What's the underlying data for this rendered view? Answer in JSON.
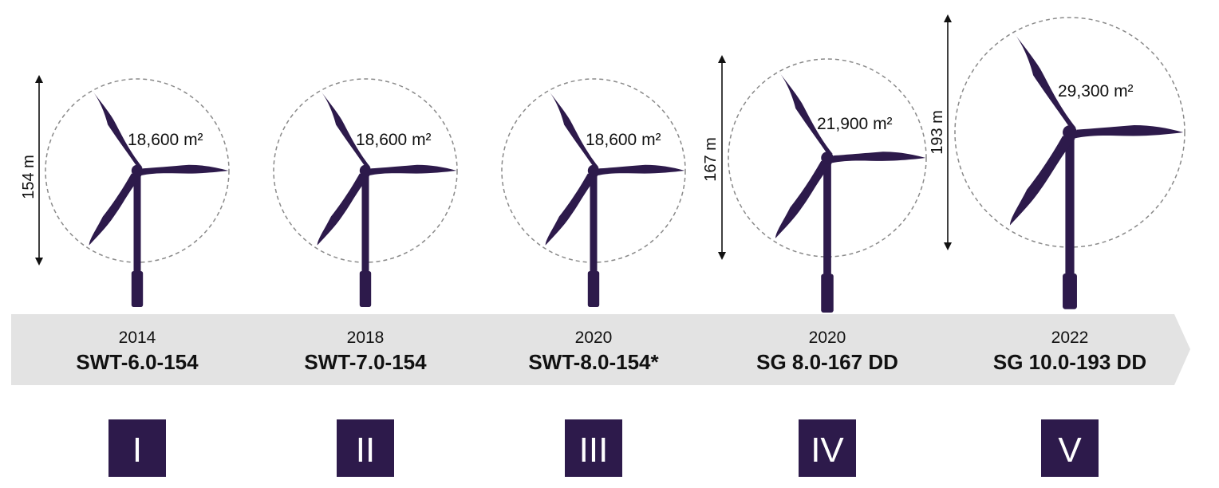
{
  "colors": {
    "turbine": "#2d1a4b",
    "band": "#e3e3e3",
    "circle": "#8a8a8a",
    "badge": "#2d1a4b",
    "badge_text": "#ffffff"
  },
  "generations": [
    {
      "roman": "I",
      "year": "2014",
      "model": "SWT-6.0-154",
      "area": "18,600 m²",
      "diameter_label": "154 m"
    },
    {
      "roman": "II",
      "year": "2018",
      "model": "SWT-7.0-154",
      "area": "18,600 m²",
      "diameter_label": ""
    },
    {
      "roman": "III",
      "year": "2020",
      "model": "SWT-8.0-154*",
      "area": "18,600 m²",
      "diameter_label": ""
    },
    {
      "roman": "IV",
      "year": "2020",
      "model": "SG 8.0-167 DD",
      "area": "21,900 m²",
      "diameter_label": "167 m"
    },
    {
      "roman": "V",
      "year": "2022",
      "model": "SG 10.0-193 DD",
      "area": "29,300 m²",
      "diameter_label": "193 m"
    }
  ]
}
